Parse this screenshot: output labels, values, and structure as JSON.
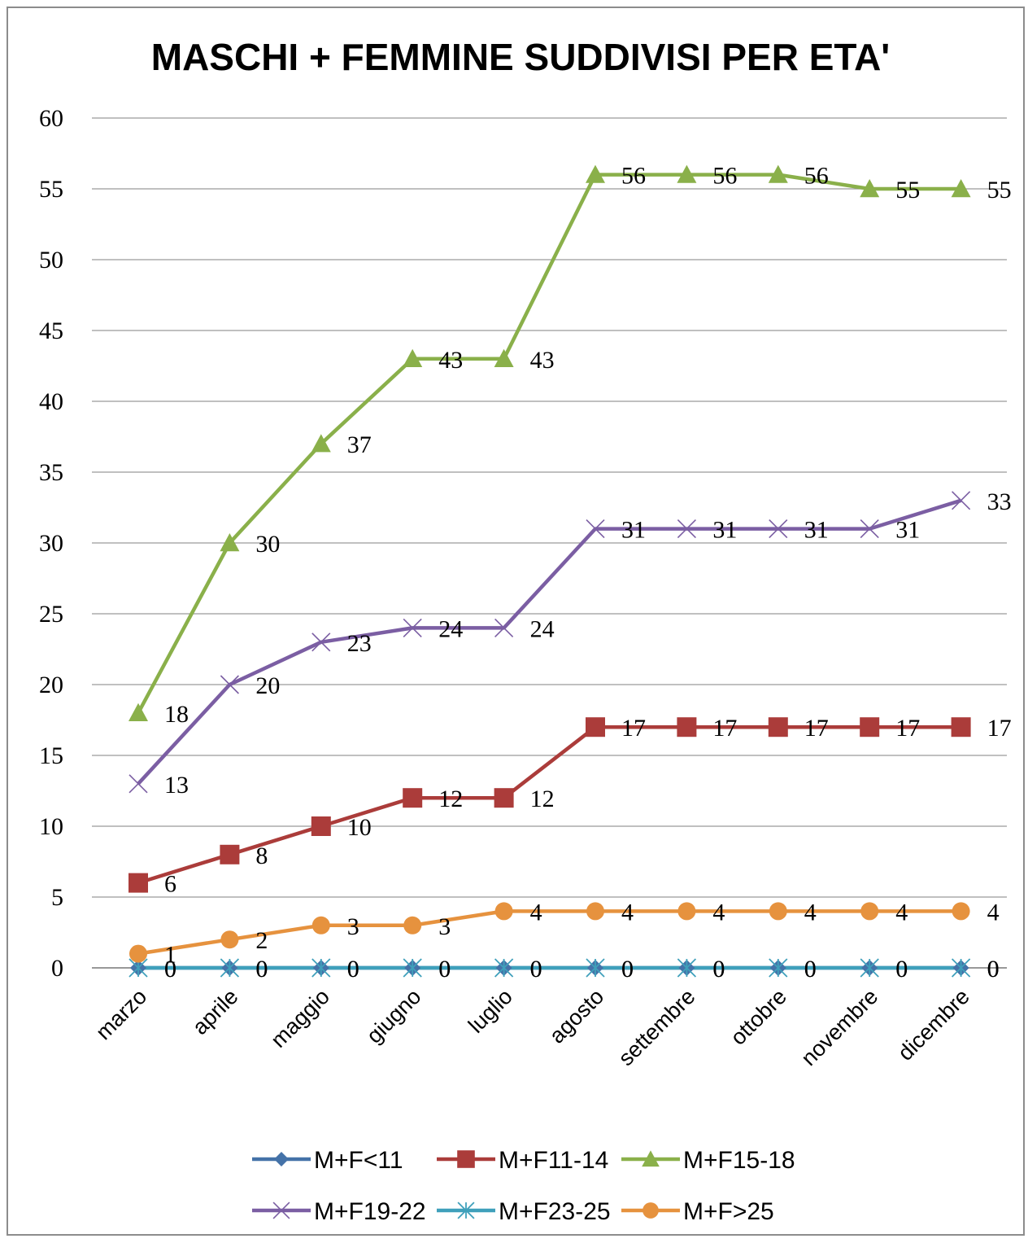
{
  "chart_data": {
    "type": "line",
    "title": "MASCHI + FEMMINE SUDDIVISI PER ETA'",
    "xlabel": "",
    "ylabel": "",
    "ylim": [
      0,
      60
    ],
    "yticks": [
      "0",
      "5",
      "10",
      "15",
      "20",
      "25",
      "30",
      "35",
      "40",
      "45",
      "50",
      "55",
      "60"
    ],
    "categories": [
      "marzo",
      "aprile",
      "maggio",
      "giugno",
      "luglio",
      "agosto",
      "settembre",
      "ottobre",
      "novembre",
      "dicembre"
    ],
    "grid": true,
    "legend_position": "bottom",
    "series": [
      {
        "name": "M+F<11",
        "color": "#4472a8",
        "marker": "diamond",
        "values": [
          0,
          0,
          0,
          0,
          0,
          0,
          0,
          0,
          0,
          0
        ]
      },
      {
        "name": "M+F11-14",
        "color": "#ab3c3a",
        "marker": "square",
        "values": [
          6,
          8,
          10,
          12,
          12,
          17,
          17,
          17,
          17,
          17
        ]
      },
      {
        "name": "M+F15-18",
        "color": "#8ab04a",
        "marker": "triangle",
        "values": [
          18,
          30,
          37,
          43,
          43,
          56,
          56,
          56,
          55,
          55
        ]
      },
      {
        "name": "M+F19-22",
        "color": "#7b5ea3",
        "marker": "x",
        "values": [
          13,
          20,
          23,
          24,
          24,
          31,
          31,
          31,
          31,
          33
        ]
      },
      {
        "name": "M+F23-25",
        "color": "#3fa0bb",
        "marker": "star",
        "values": [
          0,
          0,
          0,
          0,
          0,
          0,
          0,
          0,
          0,
          0
        ]
      },
      {
        "name": "M+F>25",
        "color": "#e6923e",
        "marker": "circle",
        "values": [
          1,
          2,
          3,
          3,
          4,
          4,
          4,
          4,
          4,
          4
        ]
      }
    ]
  }
}
